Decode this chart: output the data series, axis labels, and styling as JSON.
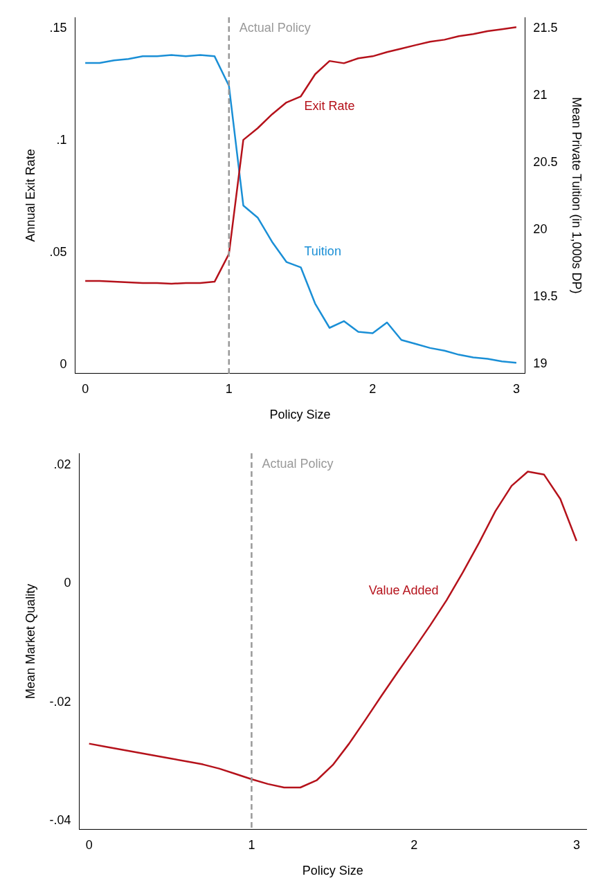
{
  "chart_data": [
    {
      "type": "line",
      "xlabel": "Policy Size",
      "ylabel": "Annual Exit Rate",
      "y2label": "Mean Private Tuition (in 1,000s DP)",
      "x": [
        0,
        0.1,
        0.2,
        0.3,
        0.4,
        0.5,
        0.6,
        0.7,
        0.8,
        0.9,
        1,
        1.1,
        1.2,
        1.3,
        1.4,
        1.5,
        1.6,
        1.7,
        1.8,
        1.9,
        2,
        2.1,
        2.2,
        2.3,
        2.4,
        2.5,
        2.6,
        2.7,
        2.8,
        2.9,
        3
      ],
      "series": [
        {
          "name": "Exit Rate",
          "color": "#b5121b",
          "values": [
            0.0373,
            0.0373,
            0.037,
            0.0367,
            0.0364,
            0.0364,
            0.0361,
            0.0364,
            0.0364,
            0.037,
            0.0494,
            0.1003,
            0.1055,
            0.1117,
            0.117,
            0.1197,
            0.1296,
            0.1355,
            0.1345,
            0.1367,
            0.1376,
            0.1395,
            0.141,
            0.1426,
            0.1441,
            0.145,
            0.1466,
            0.1475,
            0.1488,
            0.1497,
            0.1506
          ]
        },
        {
          "name": "Tuition",
          "color": "#1a8fd6",
          "axis": "y2",
          "values": [
            21.24,
            21.24,
            21.26,
            21.27,
            21.29,
            21.29,
            21.3,
            21.29,
            21.3,
            21.29,
            21.07,
            20.18,
            20.09,
            19.91,
            19.76,
            19.72,
            19.45,
            19.27,
            19.32,
            19.24,
            19.23,
            19.31,
            19.18,
            19.15,
            19.12,
            19.1,
            19.07,
            19.05,
            19.04,
            19.02,
            19.01
          ]
        }
      ],
      "xlim": [
        -0.07,
        3.06
      ],
      "xticks": [
        0,
        1,
        2,
        3
      ],
      "ylim": [
        -0.004,
        0.155
      ],
      "yticks": [
        {
          "value": 0,
          "label": "0"
        },
        {
          "value": 0.05,
          "label": ".05"
        },
        {
          "value": 0.1,
          "label": ".1"
        },
        {
          "value": 0.15,
          "label": ".15"
        }
      ],
      "y2lim": [
        18.93,
        21.58
      ],
      "y2ticks": [
        19,
        19.5,
        20,
        20.5,
        21,
        21.5
      ],
      "ref_lines": [
        {
          "axis": "x",
          "value": 1,
          "label": "Actual Policy",
          "color": "#999999",
          "line_style": "dashed"
        }
      ],
      "marker": "none",
      "line_style": "solid"
    },
    {
      "type": "line",
      "xlabel": "Policy Size",
      "ylabel": "Mean Market Quality",
      "x": [
        0,
        0.1,
        0.2,
        0.3,
        0.4,
        0.5,
        0.6,
        0.7,
        0.8,
        0.9,
        1,
        1.1,
        1.2,
        1.3,
        1.4,
        1.5,
        1.6,
        1.7,
        1.8,
        1.9,
        2,
        2.1,
        2.2,
        2.3,
        2.4,
        2.5,
        2.6,
        2.7,
        2.8,
        2.9,
        3
      ],
      "series": [
        {
          "name": "Value Added",
          "color": "#b5121b",
          "values": [
            -0.027,
            -0.0275,
            -0.028,
            -0.0285,
            -0.029,
            -0.0295,
            -0.03,
            -0.0305,
            -0.0312,
            -0.0321,
            -0.033,
            -0.0338,
            -0.0344,
            -0.0344,
            -0.0332,
            -0.0306,
            -0.027,
            -0.023,
            -0.0189,
            -0.0149,
            -0.011,
            -0.007,
            -0.0028,
            0.0019,
            0.0069,
            0.0122,
            0.0165,
            0.0189,
            0.0184,
            0.0143,
            0.0072
          ]
        }
      ],
      "xlim": [
        -0.06,
        3.06
      ],
      "xticks": [
        0,
        1,
        2,
        3
      ],
      "ylim": [
        -0.0415,
        0.022
      ],
      "yticks": [
        {
          "value": -0.04,
          "label": "-.04"
        },
        {
          "value": -0.02,
          "label": "-.02"
        },
        {
          "value": 0,
          "label": "0"
        },
        {
          "value": 0.02,
          "label": ".02"
        }
      ],
      "ref_lines": [
        {
          "axis": "x",
          "value": 1,
          "label": "Actual Policy",
          "color": "#999999",
          "line_style": "dashed"
        }
      ],
      "marker": "none",
      "line_style": "solid"
    }
  ]
}
